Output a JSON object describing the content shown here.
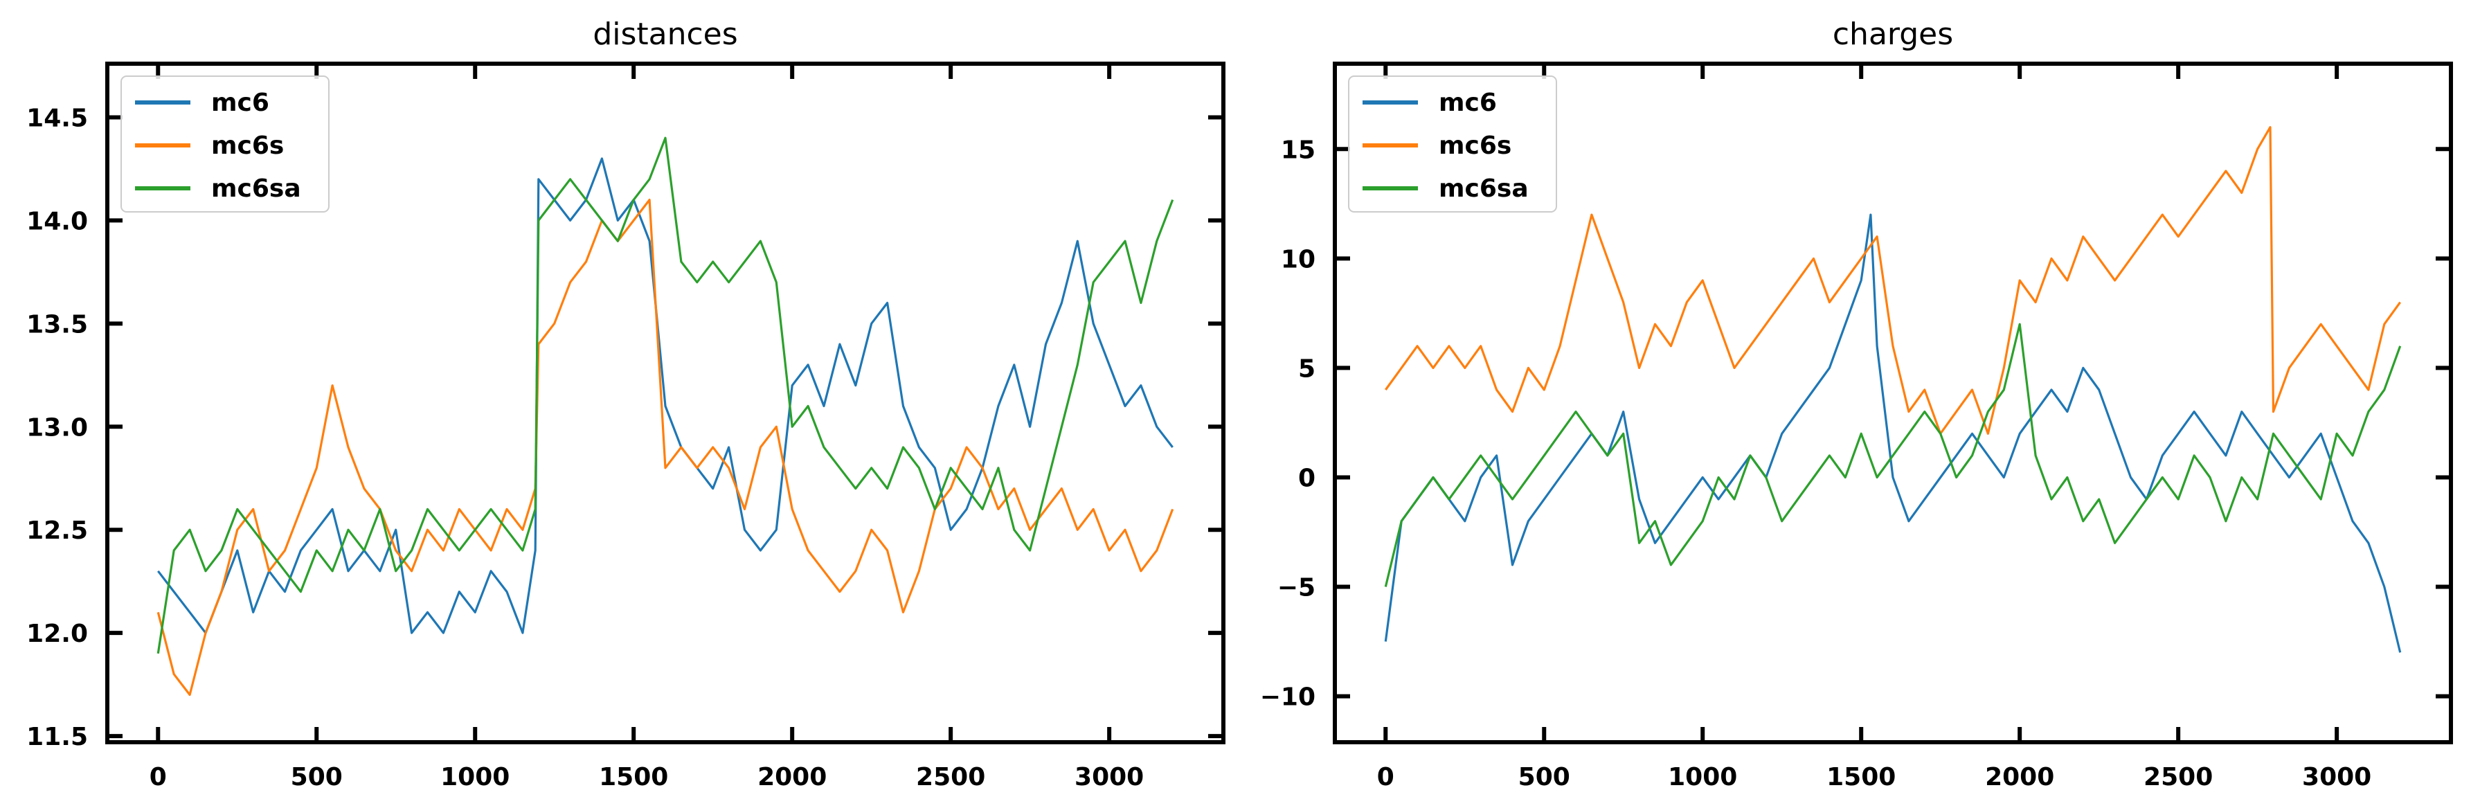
{
  "chart_data": [
    {
      "type": "line",
      "title": "distances",
      "xlabel": "",
      "ylabel": "",
      "xlim": [
        -160,
        3360
      ],
      "ylim": [
        11.47,
        14.76
      ],
      "x_ticks": [
        0,
        500,
        1000,
        1500,
        2000,
        2500,
        3000
      ],
      "x_tick_labels": [
        "0",
        "500",
        "1000",
        "1500",
        "2000",
        "2500",
        "3000"
      ],
      "y_ticks": [
        11.5,
        12.0,
        12.5,
        13.0,
        13.5,
        14.0,
        14.5
      ],
      "y_tick_labels": [
        "11.5",
        "12.0",
        "12.5",
        "13.0",
        "13.5",
        "14.0",
        "14.5"
      ],
      "grid": false,
      "legend_position": "top-left",
      "series": [
        {
          "name": "mc6",
          "color": "#1f77b4",
          "x": [
            0,
            50,
            100,
            150,
            200,
            250,
            300,
            350,
            400,
            450,
            500,
            550,
            600,
            650,
            700,
            750,
            800,
            850,
            900,
            950,
            1000,
            1050,
            1100,
            1150,
            1190,
            1200,
            1250,
            1300,
            1350,
            1400,
            1450,
            1500,
            1550,
            1600,
            1650,
            1700,
            1750,
            1800,
            1850,
            1900,
            1950,
            2000,
            2050,
            2100,
            2150,
            2200,
            2250,
            2300,
            2350,
            2400,
            2450,
            2500,
            2550,
            2600,
            2650,
            2700,
            2750,
            2800,
            2850,
            2900,
            2950,
            3000,
            3050,
            3100,
            3150,
            3200
          ],
          "values": [
            12.3,
            12.2,
            12.1,
            12.0,
            12.2,
            12.4,
            12.1,
            12.3,
            12.2,
            12.4,
            12.5,
            12.6,
            12.3,
            12.4,
            12.3,
            12.5,
            12.0,
            12.1,
            12.0,
            12.2,
            12.1,
            12.3,
            12.2,
            12.0,
            12.4,
            14.2,
            14.1,
            14.0,
            14.1,
            14.3,
            14.0,
            14.1,
            13.9,
            13.1,
            12.9,
            12.8,
            12.7,
            12.9,
            12.5,
            12.4,
            12.5,
            13.2,
            13.3,
            13.1,
            13.4,
            13.2,
            13.5,
            13.6,
            13.1,
            12.9,
            12.8,
            12.5,
            12.6,
            12.8,
            13.1,
            13.3,
            13.0,
            13.4,
            13.6,
            13.9,
            13.5,
            13.3,
            13.1,
            13.2,
            13.0,
            12.9
          ]
        },
        {
          "name": "mc6s",
          "color": "#ff7f0e",
          "x": [
            0,
            50,
            100,
            150,
            200,
            250,
            300,
            350,
            400,
            450,
            500,
            550,
            600,
            650,
            700,
            750,
            800,
            850,
            900,
            950,
            1000,
            1050,
            1100,
            1150,
            1190,
            1200,
            1250,
            1300,
            1350,
            1400,
            1450,
            1500,
            1550,
            1600,
            1650,
            1700,
            1750,
            1800,
            1850,
            1900,
            1950,
            2000,
            2050,
            2100,
            2150,
            2200,
            2250,
            2300,
            2350,
            2400,
            2450,
            2500,
            2550,
            2600,
            2650,
            2700,
            2750,
            2800,
            2850,
            2900,
            2950,
            3000,
            3050,
            3100,
            3150,
            3200
          ],
          "values": [
            12.1,
            11.8,
            11.7,
            12.0,
            12.2,
            12.5,
            12.6,
            12.3,
            12.4,
            12.6,
            12.8,
            13.2,
            12.9,
            12.7,
            12.6,
            12.4,
            12.3,
            12.5,
            12.4,
            12.6,
            12.5,
            12.4,
            12.6,
            12.5,
            12.7,
            13.4,
            13.5,
            13.7,
            13.8,
            14.0,
            13.9,
            14.0,
            14.1,
            12.8,
            12.9,
            12.8,
            12.9,
            12.8,
            12.6,
            12.9,
            13.0,
            12.6,
            12.4,
            12.3,
            12.2,
            12.3,
            12.5,
            12.4,
            12.1,
            12.3,
            12.6,
            12.7,
            12.9,
            12.8,
            12.6,
            12.7,
            12.5,
            12.6,
            12.7,
            12.5,
            12.6,
            12.4,
            12.5,
            12.3,
            12.4,
            12.6
          ]
        },
        {
          "name": "mc6sa",
          "color": "#2ca02c",
          "x": [
            0,
            50,
            100,
            150,
            200,
            250,
            300,
            350,
            400,
            450,
            500,
            550,
            600,
            650,
            700,
            750,
            800,
            850,
            900,
            950,
            1000,
            1050,
            1100,
            1150,
            1190,
            1200,
            1250,
            1300,
            1350,
            1400,
            1450,
            1500,
            1550,
            1600,
            1650,
            1700,
            1750,
            1800,
            1850,
            1900,
            1950,
            2000,
            2050,
            2100,
            2150,
            2200,
            2250,
            2300,
            2350,
            2400,
            2450,
            2500,
            2550,
            2600,
            2650,
            2700,
            2750,
            2800,
            2850,
            2900,
            2950,
            3000,
            3050,
            3100,
            3150,
            3200
          ],
          "values": [
            11.9,
            12.4,
            12.5,
            12.3,
            12.4,
            12.6,
            12.5,
            12.4,
            12.3,
            12.2,
            12.4,
            12.3,
            12.5,
            12.4,
            12.6,
            12.3,
            12.4,
            12.6,
            12.5,
            12.4,
            12.5,
            12.6,
            12.5,
            12.4,
            12.6,
            14.0,
            14.1,
            14.2,
            14.1,
            14.0,
            13.9,
            14.1,
            14.2,
            14.4,
            13.8,
            13.7,
            13.8,
            13.7,
            13.8,
            13.9,
            13.7,
            13.0,
            13.1,
            12.9,
            12.8,
            12.7,
            12.8,
            12.7,
            12.9,
            12.8,
            12.6,
            12.8,
            12.7,
            12.6,
            12.8,
            12.5,
            12.4,
            12.7,
            13.0,
            13.3,
            13.7,
            13.8,
            13.9,
            13.6,
            13.9,
            14.1
          ]
        }
      ]
    },
    {
      "type": "line",
      "title": "charges",
      "xlabel": "",
      "ylabel": "",
      "xlim": [
        -160,
        3360
      ],
      "ylim": [
        -12.1,
        18.9
      ],
      "x_ticks": [
        0,
        500,
        1000,
        1500,
        2000,
        2500,
        3000
      ],
      "x_tick_labels": [
        "0",
        "500",
        "1000",
        "1500",
        "2000",
        "2500",
        "3000"
      ],
      "y_ticks": [
        -10,
        -5,
        0,
        5,
        10,
        15
      ],
      "y_tick_labels": [
        "−10",
        "−5",
        "0",
        "5",
        "10",
        "15"
      ],
      "grid": false,
      "legend_position": "top-left",
      "series": [
        {
          "name": "mc6",
          "color": "#1f77b4",
          "x": [
            0,
            50,
            100,
            150,
            200,
            250,
            300,
            350,
            400,
            450,
            500,
            550,
            600,
            650,
            700,
            750,
            800,
            850,
            900,
            950,
            1000,
            1050,
            1100,
            1150,
            1200,
            1250,
            1300,
            1350,
            1400,
            1450,
            1500,
            1530,
            1550,
            1600,
            1650,
            1700,
            1750,
            1800,
            1850,
            1900,
            1950,
            2000,
            2050,
            2100,
            2150,
            2200,
            2250,
            2300,
            2350,
            2400,
            2450,
            2500,
            2550,
            2600,
            2650,
            2700,
            2750,
            2800,
            2850,
            2900,
            2950,
            3000,
            3050,
            3100,
            3150,
            3200
          ],
          "values": [
            -7.5,
            -2,
            -1,
            0,
            -1,
            -2,
            0,
            1,
            -4,
            -2,
            -1,
            0,
            1,
            2,
            1,
            3,
            -1,
            -3,
            -2,
            -1,
            0,
            -1,
            0,
            1,
            0,
            2,
            3,
            4,
            5,
            7,
            9,
            12,
            6,
            0,
            -2,
            -1,
            0,
            1,
            2,
            1,
            0,
            2,
            3,
            4,
            3,
            5,
            4,
            2,
            0,
            -1,
            1,
            2,
            3,
            2,
            1,
            3,
            2,
            1,
            0,
            1,
            2,
            0,
            -2,
            -3,
            -5,
            -8
          ]
        },
        {
          "name": "mc6s",
          "color": "#ff7f0e",
          "x": [
            0,
            50,
            100,
            150,
            200,
            250,
            300,
            350,
            400,
            450,
            500,
            550,
            600,
            650,
            700,
            750,
            800,
            850,
            900,
            950,
            1000,
            1050,
            1100,
            1150,
            1200,
            1250,
            1300,
            1350,
            1400,
            1450,
            1500,
            1550,
            1600,
            1650,
            1700,
            1750,
            1800,
            1850,
            1900,
            1950,
            2000,
            2050,
            2100,
            2150,
            2200,
            2250,
            2300,
            2350,
            2400,
            2450,
            2500,
            2550,
            2600,
            2650,
            2700,
            2750,
            2790,
            2800,
            2850,
            2900,
            2950,
            3000,
            3050,
            3100,
            3150,
            3200
          ],
          "values": [
            4,
            5,
            6,
            5,
            6,
            5,
            6,
            4,
            3,
            5,
            4,
            6,
            9,
            12,
            10,
            8,
            5,
            7,
            6,
            8,
            9,
            7,
            5,
            6,
            7,
            8,
            9,
            10,
            8,
            9,
            10,
            11,
            6,
            3,
            4,
            2,
            3,
            4,
            2,
            5,
            9,
            8,
            10,
            9,
            11,
            10,
            9,
            10,
            11,
            12,
            11,
            12,
            13,
            14,
            13,
            15,
            16,
            3,
            5,
            6,
            7,
            6,
            5,
            4,
            7,
            8
          ]
        },
        {
          "name": "mc6sa",
          "color": "#2ca02c",
          "x": [
            0,
            50,
            100,
            150,
            200,
            250,
            300,
            350,
            400,
            450,
            500,
            550,
            600,
            650,
            700,
            750,
            800,
            850,
            900,
            950,
            1000,
            1050,
            1100,
            1150,
            1200,
            1250,
            1300,
            1350,
            1400,
            1450,
            1500,
            1550,
            1600,
            1650,
            1700,
            1750,
            1800,
            1850,
            1900,
            1950,
            2000,
            2050,
            2100,
            2150,
            2200,
            2250,
            2300,
            2350,
            2400,
            2450,
            2500,
            2550,
            2600,
            2650,
            2700,
            2750,
            2800,
            2850,
            2900,
            2950,
            3000,
            3050,
            3100,
            3150,
            3200
          ],
          "values": [
            -5,
            -2,
            -1,
            0,
            -1,
            0,
            1,
            0,
            -1,
            0,
            1,
            2,
            3,
            2,
            1,
            2,
            -3,
            -2,
            -4,
            -3,
            -2,
            0,
            -1,
            1,
            0,
            -2,
            -1,
            0,
            1,
            0,
            2,
            0,
            1,
            2,
            3,
            2,
            0,
            1,
            3,
            4,
            7,
            1,
            -1,
            0,
            -2,
            -1,
            -3,
            -2,
            -1,
            0,
            -1,
            1,
            0,
            -2,
            0,
            -1,
            2,
            1,
            0,
            -1,
            2,
            1,
            3,
            4,
            6
          ]
        }
      ]
    }
  ]
}
